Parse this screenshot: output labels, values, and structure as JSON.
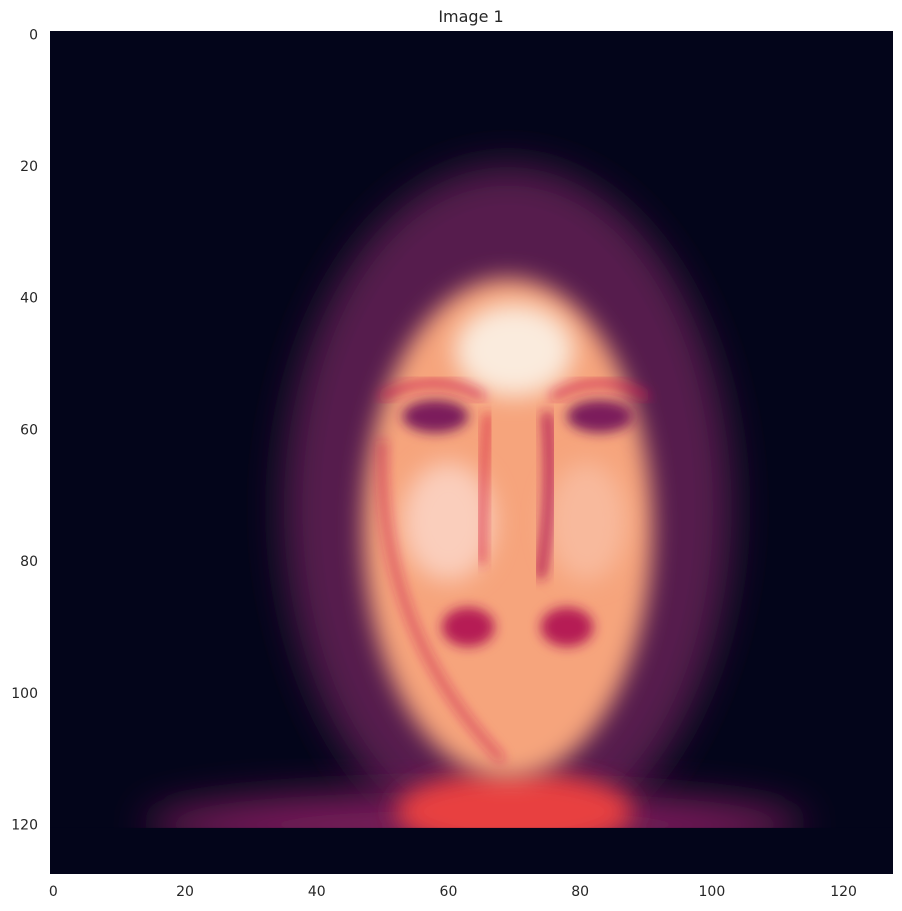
{
  "chart_data": {
    "type": "heatmap",
    "title": "Image 1",
    "xlabel": "",
    "ylabel": "",
    "xlim": [
      -0.5,
      127.5
    ],
    "ylim": [
      127.5,
      -0.5
    ],
    "y_axis_inverted": true,
    "grid": false,
    "x_ticks": [
      0,
      20,
      40,
      60,
      80,
      100,
      120
    ],
    "y_ticks": [
      0,
      20,
      40,
      60,
      80,
      100,
      120
    ],
    "image_size": [
      128,
      128
    ],
    "colormap": "rocket",
    "colormap_stops": [
      "#03051a",
      "#1f1131",
      "#4c1d4b",
      "#7c1f5b",
      "#a11a5b",
      "#cb1b4f",
      "#e83f3f",
      "#f37651",
      "#f6a47c",
      "#facebc",
      "#faebdd"
    ],
    "background_color": "#03051a",
    "intensity_features": [
      {
        "name": "face",
        "cx": 69,
        "cy": 75,
        "rx": 22,
        "ry": 38,
        "value": 0.8
      },
      {
        "name": "forehead-highlight",
        "cx": 70,
        "cy": 48,
        "rx": 9,
        "ry": 7,
        "value": 1.0
      },
      {
        "name": "left-cheek",
        "cx": 60,
        "cy": 74,
        "rx": 7,
        "ry": 9,
        "value": 0.9
      },
      {
        "name": "right-cheek",
        "cx": 81,
        "cy": 74,
        "rx": 6,
        "ry": 9,
        "value": 0.85
      },
      {
        "name": "left-eye",
        "cx": 58,
        "cy": 58,
        "rx": 5,
        "ry": 2.5,
        "value": 0.3
      },
      {
        "name": "right-eye",
        "cx": 83,
        "cy": 58,
        "rx": 5,
        "ry": 2.5,
        "value": 0.3
      },
      {
        "name": "mouth-left",
        "cx": 63,
        "cy": 90,
        "rx": 4,
        "ry": 3,
        "value": 0.45
      },
      {
        "name": "mouth-right",
        "cx": 78,
        "cy": 90,
        "rx": 4,
        "ry": 3,
        "value": 0.45
      },
      {
        "name": "neck",
        "cx": 70,
        "cy": 118,
        "rx": 18,
        "ry": 6,
        "value": 0.6
      },
      {
        "name": "shoulders",
        "cx": 64,
        "cy": 120,
        "rx": 50,
        "ry": 5,
        "value": 0.3
      },
      {
        "name": "bottom-band",
        "x_range": [
          0,
          127
        ],
        "y_range": [
          120.5,
          127.5
        ],
        "value": 0.0
      }
    ]
  }
}
